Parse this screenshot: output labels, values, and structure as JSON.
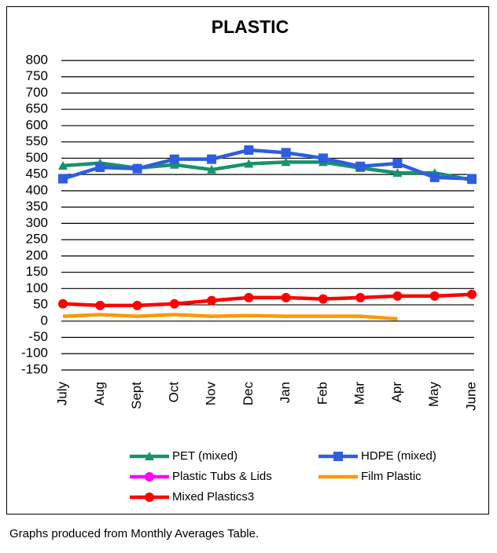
{
  "chart_data": {
    "type": "line",
    "title": "PLASTIC",
    "categories": [
      "July",
      "Aug",
      "Sept",
      "Oct",
      "Nov",
      "Dec",
      "Jan",
      "Feb",
      "Mar",
      "Apr",
      "May",
      "June"
    ],
    "series": [
      {
        "name": "PET (mixed)",
        "color": "#17936b",
        "marker": "triangle",
        "values": [
          477,
          485,
          470,
          480,
          465,
          483,
          488,
          488,
          470,
          455,
          455,
          433
        ]
      },
      {
        "name": "HDPE (mixed)",
        "color": "#2f5de0",
        "marker": "square",
        "values": [
          437,
          472,
          468,
          497,
          497,
          525,
          517,
          500,
          475,
          484,
          441,
          437
        ]
      },
      {
        "name": "Plastic Tubs & Lids",
        "color": "#ff00ff",
        "marker": "circle",
        "values": [
          null,
          null,
          null,
          null,
          null,
          null,
          null,
          null,
          null,
          null,
          null,
          null
        ]
      },
      {
        "name": "Film Plastic",
        "color": "#ff9900",
        "marker": "none",
        "values": [
          15,
          20,
          15,
          20,
          15,
          17,
          15,
          15,
          15,
          7,
          null,
          null
        ]
      },
      {
        "name": "Mixed Plastics3",
        "color": "#ff0000",
        "marker": "circle",
        "values": [
          53,
          48,
          48,
          53,
          63,
          72,
          72,
          68,
          72,
          77,
          77,
          82
        ]
      }
    ],
    "ylim": [
      -150,
      800
    ],
    "yticks": [
      -150,
      -100,
      -50,
      0,
      50,
      100,
      150,
      200,
      250,
      300,
      350,
      400,
      450,
      500,
      550,
      600,
      650,
      700,
      750,
      800
    ],
    "grid": true,
    "legend": "bottom",
    "footnote": "Graphs produced from Monthly Averages Table."
  }
}
